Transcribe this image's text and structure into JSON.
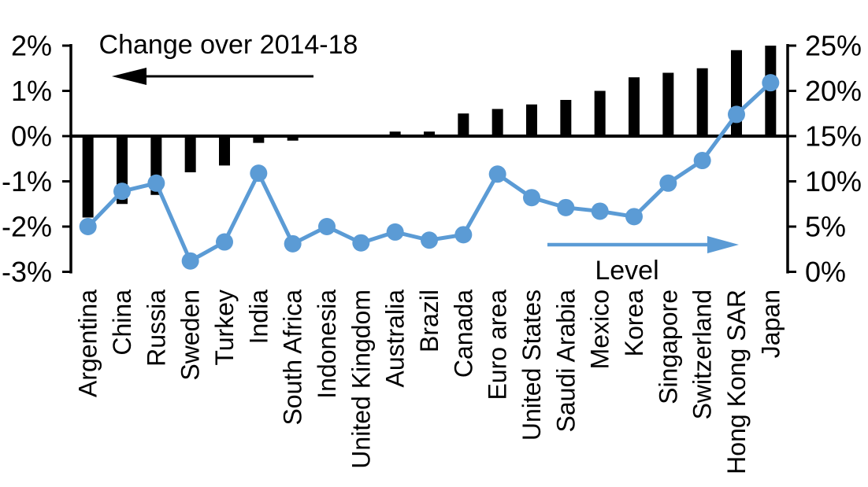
{
  "page": {
    "background_color": "#ffffff"
  },
  "chart_data": {
    "type": "combo",
    "subtype": "bar+line, dual axis",
    "categories": [
      "Argentina",
      "China",
      "Russia",
      "Sweden",
      "Turkey",
      "India",
      "South Africa",
      "Indonesia",
      "United Kingdom",
      "Australia",
      "Brazil",
      "Canada",
      "Euro area",
      "United States",
      "Saudi Arabia",
      "Mexico",
      "Korea",
      "Singapore",
      "Switzerland",
      "Hong Kong SAR",
      "Japan"
    ],
    "series": [
      {
        "name": "Change over 2014-18",
        "type": "bar",
        "axis": "left",
        "color": "#000000",
        "values": [
          -1.8,
          -1.5,
          -1.3,
          -0.8,
          -0.65,
          -0.15,
          -0.1,
          0,
          0,
          0.1,
          0.1,
          0.5,
          0.6,
          0.7,
          0.8,
          1.0,
          1.3,
          1.4,
          1.5,
          1.9,
          2.0
        ]
      },
      {
        "name": "Level",
        "type": "line",
        "axis": "right",
        "color": "#5B9BD5",
        "marker": "circle",
        "values": [
          5.0,
          8.9,
          9.8,
          1.2,
          3.3,
          10.9,
          3.1,
          5.0,
          3.2,
          4.4,
          3.5,
          4.1,
          10.8,
          8.2,
          7.1,
          6.7,
          6.1,
          9.8,
          12.3,
          17.4,
          20.9
        ]
      }
    ],
    "left_axis": {
      "min": -3,
      "max": 2,
      "tick_values": [
        2,
        1,
        0,
        -1,
        -2,
        -3
      ],
      "tick_labels": [
        "2%",
        "1%",
        "0%",
        "-1%",
        "-2%",
        "-3%"
      ]
    },
    "right_axis": {
      "min": 0,
      "max": 25,
      "tick_values": [
        25,
        20,
        15,
        10,
        5,
        0
      ],
      "tick_labels": [
        "25%",
        "20%",
        "15%",
        "10%",
        "5%",
        "0%"
      ]
    },
    "annotations": {
      "bar_series_label": "Change over 2014-18",
      "bar_arrow_direction": "left",
      "bar_arrow_color": "#000000",
      "line_series_label": "Level",
      "line_arrow_direction": "right",
      "line_arrow_color": "#5B9BD5"
    },
    "grid": false,
    "legend_position": "in-plot annotations",
    "x_label_rotation": -90
  }
}
